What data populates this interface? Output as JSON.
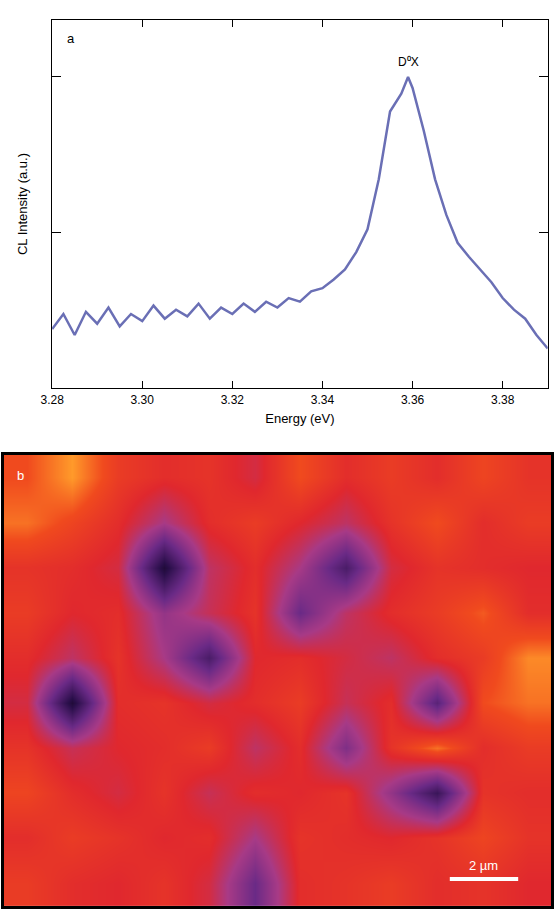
{
  "chart_data": [
    {
      "type": "line",
      "title": "a",
      "x_label": "Energy (eV)",
      "y_label": "CL Intensity (a.u.)",
      "log": "y",
      "tick_labels": "x",
      "color": "#6a6fb5",
      "xlim": [
        3.28,
        3.39
      ],
      "xticks": [
        3.28,
        {
          "value": 3.3,
          "label": "3.30"
        },
        3.32,
        3.34,
        3.36,
        3.38
      ],
      "ylim": [
        1,
        233
      ],
      "yticks": [
        10,
        100
      ],
      "annotations": [
        {
          "text": "D⁰X",
          "x": 3.359
        }
      ],
      "x": [
        3.28,
        3.2825,
        3.285,
        3.2875,
        3.29,
        3.2925,
        3.295,
        3.2975,
        3.3,
        3.3025,
        3.305,
        3.3075,
        3.31,
        3.3125,
        3.315,
        3.3175,
        3.32,
        3.3225,
        3.325,
        3.3275,
        3.33,
        3.3325,
        3.335,
        3.3375,
        3.34,
        3.3425,
        3.345,
        3.3475,
        3.35,
        3.3525,
        3.355,
        3.3575,
        3.359,
        3.36,
        3.3625,
        3.365,
        3.3675,
        3.37,
        3.3725,
        3.375,
        3.3775,
        3.38,
        3.3825,
        3.385,
        3.3875,
        3.39
      ],
      "values": [
        2.4,
        3.0,
        2.2,
        3.1,
        2.6,
        3.3,
        2.5,
        3.0,
        2.7,
        3.4,
        2.8,
        3.2,
        2.9,
        3.5,
        2.8,
        3.3,
        3.0,
        3.5,
        3.1,
        3.6,
        3.3,
        3.8,
        3.6,
        4.2,
        4.4,
        5.0,
        5.8,
        7.5,
        10.5,
        22,
        60,
        78,
        100,
        85,
        45,
        22,
        13,
        8.6,
        7.0,
        5.8,
        4.8,
        3.8,
        3.2,
        2.8,
        2.2,
        1.8
      ]
    },
    {
      "type": "heatmap",
      "title": "b",
      "tick_labels": false,
      "xlim": [
        0,
        16
      ],
      "ylim": [
        0,
        13
      ],
      "zlim": [
        0,
        1
      ],
      "scale_bar": {
        "length": 2,
        "label": "2 µm"
      },
      "cells": [
        [
          0.8,
          0.9,
          0.75,
          0.7,
          0.72,
          0.65,
          0.8,
          0.7,
          0.75,
          0.7,
          0.78,
          0.72
        ],
        [
          0.85,
          0.78,
          0.7,
          0.55,
          0.7,
          0.75,
          0.68,
          0.6,
          0.72,
          0.8,
          0.7,
          0.75
        ],
        [
          0.72,
          0.7,
          0.65,
          0.15,
          0.6,
          0.7,
          0.55,
          0.3,
          0.65,
          0.72,
          0.7,
          0.68
        ],
        [
          0.75,
          0.68,
          0.7,
          0.5,
          0.62,
          0.72,
          0.4,
          0.6,
          0.7,
          0.75,
          0.82,
          0.7
        ],
        [
          0.7,
          0.6,
          0.72,
          0.55,
          0.3,
          0.68,
          0.7,
          0.65,
          0.6,
          0.7,
          0.75,
          0.88
        ],
        [
          0.65,
          0.15,
          0.7,
          0.72,
          0.65,
          0.7,
          0.75,
          0.62,
          0.7,
          0.35,
          0.8,
          0.85
        ],
        [
          0.72,
          0.62,
          0.68,
          0.7,
          0.75,
          0.6,
          0.7,
          0.45,
          0.72,
          0.85,
          0.7,
          0.75
        ],
        [
          0.78,
          0.7,
          0.65,
          0.72,
          0.62,
          0.7,
          0.68,
          0.72,
          0.5,
          0.25,
          0.72,
          0.7
        ],
        [
          0.7,
          0.75,
          0.72,
          0.68,
          0.7,
          0.55,
          0.72,
          0.7,
          0.68,
          0.72,
          0.78,
          0.72
        ],
        [
          0.75,
          0.7,
          0.68,
          0.72,
          0.65,
          0.4,
          0.7,
          0.72,
          0.75,
          0.7,
          0.72,
          0.68
        ]
      ]
    }
  ]
}
